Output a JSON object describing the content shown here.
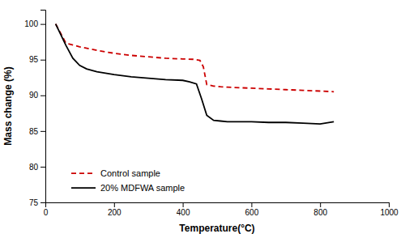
{
  "chart_data": {
    "type": "line",
    "x_label": "Temperature(°C)",
    "y_label": "Mass change (%)",
    "xlim": [
      0,
      1000
    ],
    "ylim": [
      75,
      102
    ],
    "xticks": [
      0,
      200,
      400,
      600,
      800,
      1000
    ],
    "yticks": [
      75,
      80,
      85,
      90,
      95,
      100
    ],
    "grid": false,
    "legend": "lower left",
    "series": [
      {
        "name": "Control sample",
        "color": "#cc0000",
        "line_style": "dashed",
        "x": [
          30,
          60,
          100,
          150,
          200,
          250,
          300,
          350,
          400,
          430,
          450,
          460,
          470,
          490,
          510,
          530,
          550,
          600,
          650,
          700,
          750,
          800,
          840
        ],
        "values": [
          100,
          97.3,
          96.8,
          96.3,
          95.9,
          95.6,
          95.4,
          95.2,
          95.1,
          95.05,
          94.9,
          94.0,
          91.5,
          91.3,
          91.2,
          91.15,
          91.1,
          91.0,
          90.9,
          90.8,
          90.7,
          90.6,
          90.5
        ]
      },
      {
        "name": "20% MDFWA sample",
        "color": "#000000",
        "line_style": "solid",
        "x": [
          30,
          60,
          80,
          100,
          120,
          150,
          200,
          250,
          300,
          350,
          400,
          420,
          440,
          455,
          470,
          490,
          510,
          530,
          600,
          650,
          700,
          750,
          800,
          840
        ],
        "values": [
          100,
          97.0,
          95.2,
          94.2,
          93.7,
          93.3,
          92.9,
          92.6,
          92.4,
          92.2,
          92.1,
          91.9,
          91.6,
          89.5,
          87.2,
          86.5,
          86.4,
          86.3,
          86.3,
          86.2,
          86.2,
          86.1,
          86.0,
          86.3
        ]
      }
    ]
  }
}
